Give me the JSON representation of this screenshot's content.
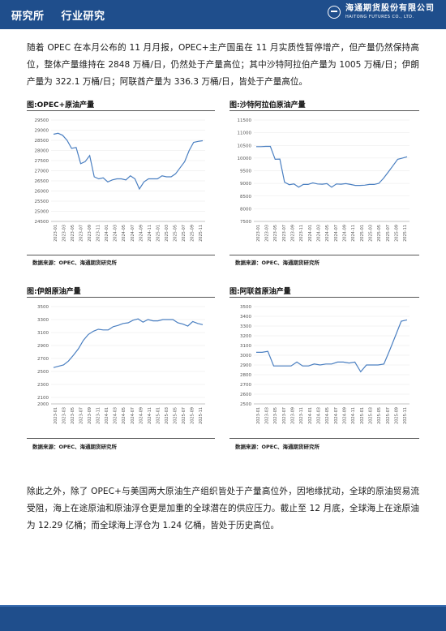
{
  "header": {
    "section1": "研究所",
    "section2": "行业研究",
    "logo_cn": "海通期货股份有限公司",
    "logo_en": "HAITONG FUTURES CO., LTD."
  },
  "paragraph1": "随着 OPEC 在本月公布的 11 月月报，OPEC+主产国虽在 11 月实质性暂停增产，但产量仍然保持高位，整体产量维持在 2848 万桶/日，仍然处于产量高位；其中沙特阿拉伯产量为 1005 万桶/日；伊朗产量为 322.1 万桶/日；阿联酋产量为 336.3 万桶/日，皆处于产量高位。",
  "paragraph2": "除此之外，除了 OPEC+与美国两大原油生产组织皆处于产量高位外，因地缘扰动，全球的原油贸易流受阻，海上在途原油和原油浮仓更是加重的全球潜在的供应压力。截止至 12 月底，全球海上在途原油为 12.29 亿桶；而全球海上浮仓为 1.24 亿桶，皆处于历史高位。",
  "colors": {
    "brand": "#1f4e8c",
    "line": "#4a7fc1"
  },
  "chart_data": [
    {
      "type": "line",
      "title": "图:OPEC+原油产量",
      "source": "数据来源：OPEC、海通期货研究所",
      "ylim": [
        24500,
        29500
      ],
      "yticks": [
        24500,
        25000,
        25500,
        26000,
        26500,
        27000,
        27500,
        28000,
        28500,
        29000,
        29500
      ],
      "xticks": [
        "2023-01",
        "2023-03",
        "2023-05",
        "2023-07",
        "2023-09",
        "2023-11",
        "2024-01",
        "2024-03",
        "2024-05",
        "2024-07",
        "2024-09",
        "2024-11",
        "2025-01",
        "2025-03",
        "2025-05",
        "2025-07",
        "2025-09",
        "2025-11"
      ],
      "values": [
        28800,
        28850,
        28750,
        28500,
        28100,
        28150,
        27350,
        27450,
        27750,
        26700,
        26600,
        26650,
        26450,
        26550,
        26600,
        26600,
        26550,
        26750,
        26600,
        26100,
        26450,
        26600,
        26600,
        26600,
        26750,
        26700,
        26700,
        26850,
        27150,
        27450,
        28000,
        28400,
        28450,
        28480
      ]
    },
    {
      "type": "line",
      "title": "图:沙特阿拉伯原油产量",
      "source": "数据来源：OPEC、海通期货研究所",
      "ylim": [
        7500,
        11500
      ],
      "yticks": [
        7500,
        8000,
        8500,
        9000,
        9500,
        10000,
        10500,
        11000,
        11500
      ],
      "xticks": [
        "2023-01",
        "2023-03",
        "2023-05",
        "2023-07",
        "2023-09",
        "2023-11",
        "2024-01",
        "2024-03",
        "2024-05",
        "2024-07",
        "2024-09",
        "2024-11",
        "2025-01",
        "2025-03",
        "2025-05",
        "2025-07",
        "2025-09",
        "2025-11"
      ],
      "values": [
        10450,
        10450,
        10460,
        10460,
        9950,
        9960,
        9050,
        8950,
        8980,
        8850,
        8960,
        8960,
        9020,
        8980,
        8970,
        8990,
        8850,
        8980,
        8970,
        8990,
        8960,
        8920,
        8920,
        8930,
        8960,
        8960,
        9000,
        9200,
        9450,
        9700,
        9950,
        10000,
        10050
      ]
    },
    {
      "type": "line",
      "title": "图:伊朗原油产量",
      "source": "数据来源：OPEC、海通期货研究所",
      "ylim": [
        2000,
        3500
      ],
      "yticks": [
        2000,
        2100,
        2300,
        2500,
        2700,
        2900,
        3100,
        3300,
        3500
      ],
      "xticks": [
        "2023-01",
        "2023-03",
        "2023-05",
        "2023-07",
        "2023-09",
        "2023-11",
        "2024-01",
        "2024-03",
        "2024-05",
        "2024-07",
        "2024-09",
        "2024-11",
        "2025-01",
        "2025-03",
        "2025-05",
        "2025-07",
        "2025-09",
        "2025-11"
      ],
      "values": [
        2560,
        2580,
        2600,
        2660,
        2750,
        2850,
        2980,
        3070,
        3120,
        3150,
        3140,
        3140,
        3190,
        3210,
        3240,
        3250,
        3290,
        3310,
        3260,
        3300,
        3280,
        3280,
        3300,
        3300,
        3300,
        3250,
        3230,
        3200,
        3270,
        3240,
        3221
      ]
    },
    {
      "type": "line",
      "title": "图:阿联酋原油产量",
      "source": "数据来源：OPEC、海通期货研究所",
      "ylim": [
        2500,
        3500
      ],
      "yticks": [
        2500,
        2600,
        2700,
        2800,
        2900,
        3000,
        3100,
        3200,
        3300,
        3400,
        3500
      ],
      "xticks": [
        "2023-01",
        "2023-03",
        "2023-05",
        "2023-07",
        "2023-09",
        "2023-11",
        "2024-01",
        "2024-03",
        "2024-05",
        "2024-07",
        "2024-09",
        "2024-11",
        "2025-01",
        "2025-03",
        "2025-05",
        "2025-07",
        "2025-09",
        "2025-11"
      ],
      "values": [
        3030,
        3030,
        3040,
        2890,
        2890,
        2890,
        2890,
        2930,
        2890,
        2890,
        2910,
        2900,
        2910,
        2910,
        2930,
        2930,
        2920,
        2930,
        2830,
        2900,
        2900,
        2900,
        2910,
        3050,
        3200,
        3350,
        3363
      ]
    }
  ]
}
